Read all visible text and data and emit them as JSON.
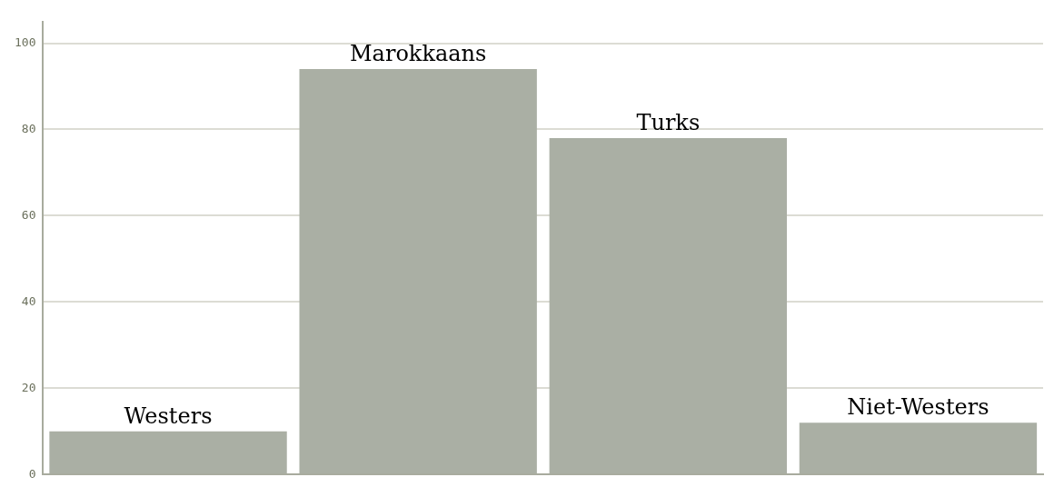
{
  "chart_data": {
    "type": "bar",
    "categories": [
      "Westers",
      "Marokkaans",
      "Turks",
      "Niet-Westers"
    ],
    "values": [
      10,
      94,
      78,
      12
    ],
    "color": "#aaafa4",
    "ylim": [
      0,
      105
    ],
    "yticks": [
      0,
      20,
      40,
      60,
      80,
      100
    ],
    "grid": "y",
    "tick_labels": "y"
  }
}
